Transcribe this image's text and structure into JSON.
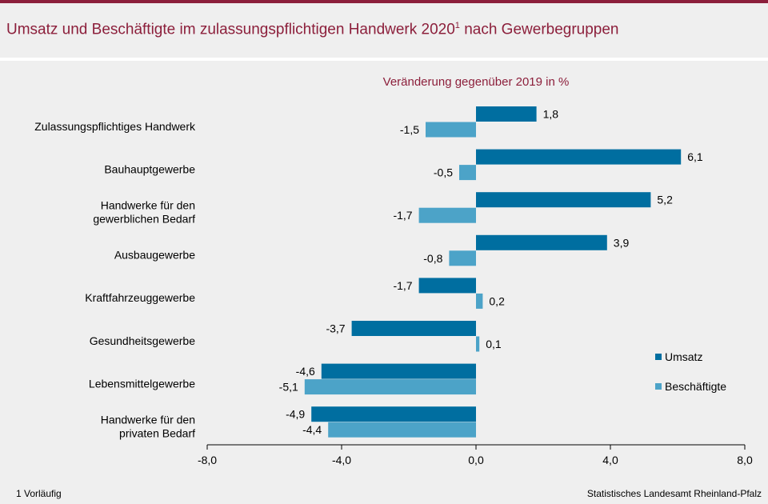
{
  "header": {
    "title": "Umsatz und Beschäftigte im zulassungspflichtigen Handwerk 2020",
    "title_sup": "1",
    "title_suffix": " nach Gewerbegruppen"
  },
  "footer": {
    "footnote": "1 Vorläufig",
    "source": "Statistisches Landesamt Rheinland-Pfalz"
  },
  "colors": {
    "accent": "#8c1f3b",
    "umsatz": "#006ea0",
    "beschaeftigte": "#4ca3c8"
  },
  "chart_data": {
    "type": "bar",
    "orientation": "horizontal",
    "title": "Veränderung gegenüber 2019 in %",
    "categories": [
      [
        "Zulassungspflichtiges Handwerk"
      ],
      [
        "Bauhauptgewerbe"
      ],
      [
        "Handwerke für den",
        "gewerblichen Bedarf"
      ],
      [
        "Ausbaugewerbe"
      ],
      [
        "Kraftfahrzeuggewerbe"
      ],
      [
        "Gesundheitsgewerbe"
      ],
      [
        "Lebensmittelgewerbe"
      ],
      [
        "Handwerke für den",
        "privaten Bedarf"
      ]
    ],
    "series": [
      {
        "name": "Umsatz",
        "values": [
          1.8,
          6.1,
          5.2,
          3.9,
          -1.7,
          -3.7,
          -4.6,
          -4.9
        ]
      },
      {
        "name": "Beschäftigte",
        "values": [
          -1.5,
          -0.5,
          -1.7,
          -0.8,
          0.2,
          0.1,
          -5.1,
          -4.4
        ]
      }
    ],
    "value_labels": [
      [
        "1,8",
        "6,1",
        "5,2",
        "3,9",
        "-1,7",
        "-3,7",
        "-4,6",
        "-4,9"
      ],
      [
        "-1,5",
        "-0,5",
        "-1,7",
        "-0,8",
        "0,2",
        "0,1",
        "-5,1",
        "-4,4"
      ]
    ],
    "xlim": [
      -8,
      8
    ],
    "xticks": [
      -8,
      -4,
      0,
      4,
      8
    ],
    "xtick_labels": [
      "-8,0",
      "-4,0",
      "0,0",
      "4,0",
      "8,0"
    ],
    "grid": false,
    "legend_position": "right"
  }
}
